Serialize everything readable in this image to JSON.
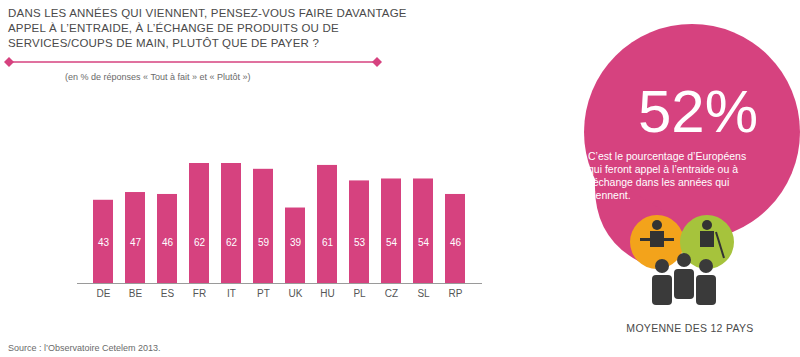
{
  "chart_data": {
    "type": "bar",
    "title": "DANS LES ANNÉES QUI VIENNENT, PENSEZ-VOUS FAIRE DAVANTAGE APPEL À L’ENTRAIDE, À L’ÉCHANGE DE PRODUITS OU DE SERVICES/COUPS DE MAIN, PLUTÔT QUE DE PAYER ?",
    "subtitle": "(en % de réponses « Tout à fait » et « Plutôt »)",
    "categories": [
      "DE",
      "BE",
      "ES",
      "FR",
      "IT",
      "PT",
      "UK",
      "HU",
      "PL",
      "CZ",
      "SL",
      "RP"
    ],
    "values": [
      43,
      47,
      46,
      62,
      62,
      59,
      39,
      61,
      53,
      54,
      54,
      46
    ],
    "color": "#d6427f",
    "ylim": [
      0,
      62
    ],
    "yticks": [],
    "data_labels": true,
    "tick_labels": "x",
    "annotation": {
      "label": "52%",
      "text": "C’est le pourcentage d’Européens qui feront appel à l’entraide ou à l’échange dans les années qui viennent.",
      "caption": "MOYENNE DES 12 PAYS"
    },
    "source": "Source : l’Observatoire Cetelem 2013."
  }
}
